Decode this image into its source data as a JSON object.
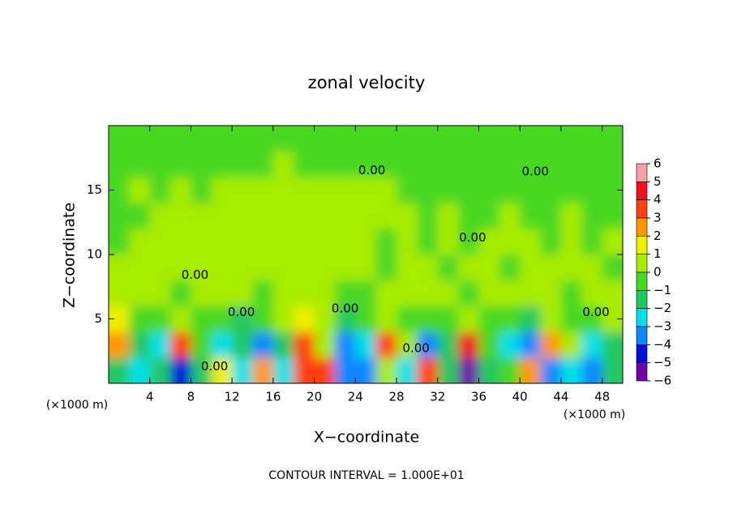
{
  "chart_data": {
    "type": "heatmap",
    "title": "zonal velocity",
    "x_label": "X−coordinate",
    "y_label": "Z−coordinate",
    "x_unit_left": "(×1000 m)",
    "x_unit_right": "(×1000 m)",
    "footnote": "CONTOUR INTERVAL = 1.000E+01",
    "xlim": [
      0,
      50
    ],
    "ylim": [
      0,
      20
    ],
    "xticks": [
      4,
      8,
      12,
      16,
      20,
      24,
      28,
      32,
      36,
      40,
      44,
      48
    ],
    "yticks": [
      5,
      10,
      15
    ],
    "x": [
      1,
      3,
      5,
      7,
      9,
      11,
      13,
      15,
      17,
      19,
      21,
      23,
      25,
      27,
      29,
      31,
      33,
      35,
      37,
      39,
      41,
      43,
      45,
      47,
      49
    ],
    "y": [
      1,
      3,
      5,
      7,
      9,
      11,
      13,
      15,
      17,
      19
    ],
    "values": [
      [
        -1.5,
        -2,
        -1,
        -4,
        -1,
        2,
        -2,
        3,
        -2,
        4,
        4,
        -3,
        -3,
        1,
        -2,
        4,
        -1,
        -5,
        -1,
        0,
        3,
        -3,
        -2,
        -3,
        -1
      ],
      [
        3,
        -1,
        -2,
        4,
        0,
        -2,
        -1,
        -3,
        -1,
        4,
        1,
        -3,
        -2,
        4,
        1,
        -3,
        -1,
        4.5,
        0,
        -2,
        -3,
        3,
        1,
        -2,
        -1
      ],
      [
        2,
        0,
        0,
        1,
        0,
        0,
        -1,
        -0.5,
        0.5,
        2,
        0.5,
        -1,
        0,
        1,
        0,
        -0.5,
        0,
        0.5,
        0,
        0,
        -1,
        0.5,
        0,
        -0.5,
        0.5
      ],
      [
        0.3,
        0.5,
        0.2,
        0,
        0.3,
        0.5,
        0.2,
        0,
        0.3,
        0.5,
        0.2,
        0,
        -0.3,
        0.3,
        0.2,
        0.5,
        0.3,
        0,
        0.2,
        0.3,
        0.5,
        0.2,
        0,
        0.3,
        0.2
      ],
      [
        0.2,
        0.3,
        0.5,
        0.3,
        0.2,
        0.5,
        0.3,
        0.2,
        0.5,
        0.3,
        0.2,
        0.3,
        0.2,
        0,
        0.3,
        0.2,
        0,
        0.3,
        0.2,
        0,
        0.2,
        0.3,
        0.2,
        0.3,
        0
      ],
      [
        0,
        0.2,
        0.3,
        0.5,
        0.5,
        0.3,
        0.2,
        0.3,
        0.5,
        0.3,
        0.2,
        0.3,
        0.2,
        0,
        0.2,
        0,
        0.2,
        0,
        0.2,
        0.3,
        0.2,
        0,
        0.2,
        0,
        0.2
      ],
      [
        0,
        0,
        0.2,
        0.3,
        0.2,
        0.3,
        0.5,
        0.3,
        0.2,
        0.3,
        0.2,
        0.3,
        0.5,
        0.3,
        0.2,
        0,
        0.2,
        0,
        0,
        0.2,
        0,
        0,
        0.2,
        0,
        0
      ],
      [
        0,
        0.2,
        0,
        0.2,
        0,
        0.2,
        0.3,
        0.2,
        0.3,
        0.2,
        0.2,
        0.3,
        0.2,
        0.2,
        0,
        0,
        0,
        0,
        0,
        0,
        0,
        0,
        0,
        0,
        0
      ],
      [
        0,
        0,
        0,
        0,
        0,
        0,
        0,
        0,
        0.2,
        0,
        0,
        0,
        0,
        0,
        0,
        0,
        0,
        0,
        0,
        0,
        0,
        0,
        0,
        0,
        0
      ],
      [
        0,
        0,
        0,
        0,
        0,
        0,
        0,
        0,
        0,
        0,
        0,
        0,
        0,
        0,
        0,
        0,
        0,
        0,
        0,
        0,
        0,
        0,
        0,
        0,
        0
      ]
    ],
    "colorbar": {
      "levels": [
        6,
        5,
        4,
        3,
        2,
        1,
        0,
        {
          "value": -1,
          "label": "−1"
        },
        {
          "value": -2,
          "label": "−2"
        },
        {
          "value": -3,
          "label": "−3"
        },
        {
          "value": -4,
          "label": "−4"
        },
        {
          "value": -5,
          "label": "−5"
        },
        {
          "value": -6,
          "label": "−6"
        }
      ],
      "colors": [
        "#f4a0a4",
        "#f01020",
        "#ff4010",
        "#ff9800",
        "#eef000",
        "#a8ec00",
        "#48d820",
        "#20c860",
        "#00e0e8",
        "#1088ff",
        "#0010d8",
        "#7000a8"
      ]
    },
    "annotations": [
      {
        "text": "0.00",
        "x": 8.4,
        "y": 8.4
      },
      {
        "text": "0.00",
        "x": 12.9,
        "y": 5.5
      },
      {
        "text": "0.00",
        "x": 10.3,
        "y": 1.3
      },
      {
        "text": "0.00",
        "x": 23,
        "y": 5.8
      },
      {
        "text": "0.00",
        "x": 25.6,
        "y": 16.5
      },
      {
        "text": "0.00",
        "x": 41.5,
        "y": 16.4
      },
      {
        "text": "0.00",
        "x": 35.4,
        "y": 11.3
      },
      {
        "text": "0.00",
        "x": 29.9,
        "y": 2.7
      },
      {
        "text": "0.00",
        "x": 47.4,
        "y": 5.5
      }
    ]
  }
}
